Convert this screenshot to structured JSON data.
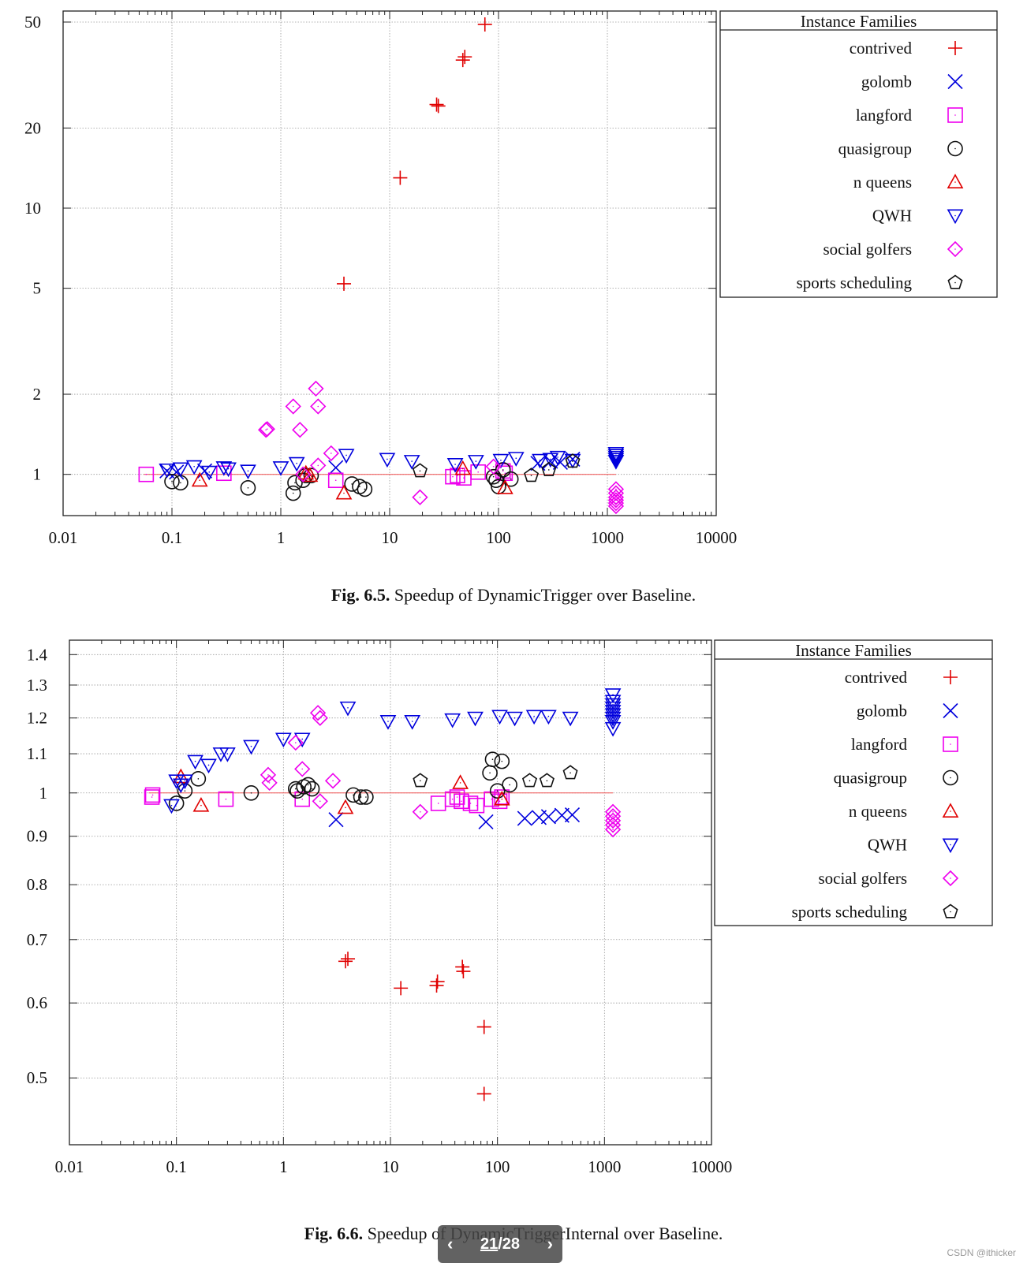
{
  "chart_data": [
    {
      "id": "fig65",
      "type": "scatter",
      "xscale": "log",
      "yscale": "log",
      "xlim": [
        0.01,
        10000
      ],
      "ylim": [
        0.7,
        55
      ],
      "xticks": [
        {
          "v": 0.01,
          "label": "0.01"
        },
        {
          "v": 0.1,
          "label": "0.1"
        },
        {
          "v": 1,
          "label": "1"
        },
        {
          "v": 10,
          "label": "10"
        },
        {
          "v": 100,
          "label": "100"
        },
        {
          "v": 1000,
          "label": "1000"
        },
        {
          "v": 10000,
          "label": "10000"
        }
      ],
      "yticks": [
        {
          "v": 1,
          "label": "1"
        },
        {
          "v": 2,
          "label": "2"
        },
        {
          "v": 5,
          "label": "5"
        },
        {
          "v": 10,
          "label": "10"
        },
        {
          "v": 20,
          "label": "20"
        },
        {
          "v": 50,
          "label": "50"
        }
      ],
      "refline": {
        "y": 1,
        "x_from": 0.055,
        "x_to": 1200,
        "color": "#f05050"
      },
      "legend_title": "Instance Families",
      "caption_bold": "Fig. 6.5.",
      "caption_text": "Speedup of DynamicTrigger over Baseline.",
      "series": [
        {
          "name": "contrived",
          "marker": "plus",
          "color": "#e00000",
          "points": [
            [
              3.8,
              5.2
            ],
            [
              12.5,
              13
            ],
            [
              27,
              24.5
            ],
            [
              28,
              24.2
            ],
            [
              47,
              36
            ],
            [
              49,
              37
            ],
            [
              75,
              49
            ]
          ]
        },
        {
          "name": "golomb",
          "marker": "x",
          "color": "#0000dd",
          "points": [
            [
              0.09,
              1.03
            ],
            [
              0.11,
              1.02
            ],
            [
              0.2,
              1.03
            ],
            [
              3.2,
              1.06
            ],
            [
              230,
              1.1
            ],
            [
              300,
              1.12
            ],
            [
              370,
              1.11
            ],
            [
              480,
              1.14
            ]
          ]
        },
        {
          "name": "langford",
          "marker": "square",
          "color": "#ee00ee",
          "points": [
            [
              0.058,
              1.0
            ],
            [
              0.3,
              1.01
            ],
            [
              3.2,
              0.95
            ],
            [
              38,
              0.98
            ],
            [
              42,
              0.99
            ],
            [
              48,
              0.97
            ],
            [
              65,
              1.02
            ],
            [
              110,
              1.03
            ],
            [
              115,
              1.01
            ]
          ]
        },
        {
          "name": "quasigroup",
          "marker": "circle",
          "color": "#111111",
          "points": [
            [
              0.1,
              0.94
            ],
            [
              0.12,
              0.93
            ],
            [
              0.5,
              0.89
            ],
            [
              1.3,
              0.85
            ],
            [
              1.35,
              0.93
            ],
            [
              1.6,
              0.95
            ],
            [
              1.7,
              0.99
            ],
            [
              1.9,
              0.99
            ],
            [
              4.5,
              0.92
            ],
            [
              5.3,
              0.9
            ],
            [
              5.9,
              0.88
            ],
            [
              90,
              0.98
            ],
            [
              95,
              0.95
            ],
            [
              100,
              0.9
            ],
            [
              110,
              1.04
            ],
            [
              130,
              0.96
            ]
          ]
        },
        {
          "name": "n queens",
          "marker": "triangle-up",
          "color": "#e00000",
          "points": [
            [
              0.18,
              0.95
            ],
            [
              1.7,
              1.01
            ],
            [
              1.85,
              0.99
            ],
            [
              3.8,
              0.85
            ],
            [
              47,
              1.05
            ],
            [
              115,
              0.89
            ]
          ]
        },
        {
          "name": "QWH",
          "marker": "triangle-down",
          "color": "#0000dd",
          "points": [
            [
              0.09,
              1.04
            ],
            [
              0.12,
              1.05
            ],
            [
              0.16,
              1.07
            ],
            [
              0.22,
              1.02
            ],
            [
              0.3,
              1.06
            ],
            [
              0.33,
              1.05
            ],
            [
              0.5,
              1.03
            ],
            [
              1.0,
              1.06
            ],
            [
              1.4,
              1.1
            ],
            [
              4,
              1.18
            ],
            [
              9.5,
              1.14
            ],
            [
              16,
              1.12
            ],
            [
              40,
              1.09
            ],
            [
              62,
              1.12
            ],
            [
              105,
              1.13
            ],
            [
              145,
              1.15
            ],
            [
              240,
              1.13
            ],
            [
              300,
              1.14
            ],
            [
              350,
              1.16
            ],
            [
              480,
              1.13
            ],
            [
              1200,
              1.12
            ],
            [
              1200,
              1.14
            ],
            [
              1200,
              1.16
            ],
            [
              1200,
              1.18
            ],
            [
              1200,
              1.2
            ]
          ]
        },
        {
          "name": "social golfers",
          "marker": "diamond",
          "color": "#ee00ee",
          "points": [
            [
              0.73,
              1.47
            ],
            [
              0.75,
              1.48
            ],
            [
              1.3,
              1.8
            ],
            [
              1.5,
              1.47
            ],
            [
              2.1,
              2.1
            ],
            [
              2.2,
              1.8
            ],
            [
              2.9,
              1.2
            ],
            [
              2.2,
              1.08
            ],
            [
              19,
              0.82
            ],
            [
              1.6,
              1.0
            ],
            [
              90,
              1.07
            ],
            [
              1200,
              0.88
            ],
            [
              1200,
              0.85
            ],
            [
              1200,
              0.82
            ],
            [
              1200,
              0.8
            ],
            [
              1200,
              0.78
            ],
            [
              1200,
              0.76
            ]
          ]
        },
        {
          "name": "sports scheduling",
          "marker": "pentagon",
          "color": "#111111",
          "points": [
            [
              19,
              1.03
            ],
            [
              200,
              0.99
            ],
            [
              290,
              1.04
            ],
            [
              480,
              1.12
            ]
          ]
        }
      ]
    },
    {
      "id": "fig66",
      "type": "scatter",
      "xscale": "log",
      "yscale": "log",
      "xlim": [
        0.01,
        10000
      ],
      "ylim": [
        0.425,
        1.45
      ],
      "xticks": [
        {
          "v": 0.01,
          "label": "0.01"
        },
        {
          "v": 0.1,
          "label": "0.1"
        },
        {
          "v": 1,
          "label": "1"
        },
        {
          "v": 10,
          "label": "10"
        },
        {
          "v": 100,
          "label": "100"
        },
        {
          "v": 1000,
          "label": "1000"
        },
        {
          "v": 10000,
          "label": "10000"
        }
      ],
      "yticks": [
        {
          "v": 0.5,
          "label": "0.5"
        },
        {
          "v": 0.6,
          "label": "0.6"
        },
        {
          "v": 0.7,
          "label": "0.7"
        },
        {
          "v": 0.8,
          "label": "0.8"
        },
        {
          "v": 0.9,
          "label": "0.9"
        },
        {
          "v": 1,
          "label": "1"
        },
        {
          "v": 1.1,
          "label": "1.1"
        },
        {
          "v": 1.2,
          "label": "1.2"
        },
        {
          "v": 1.3,
          "label": "1.3"
        },
        {
          "v": 1.4,
          "label": "1.4"
        }
      ],
      "refline": {
        "y": 1,
        "x_from": 0.055,
        "x_to": 1200,
        "color": "#f05050"
      },
      "legend_title": "Instance Families",
      "caption_bold": "Fig. 6.6.",
      "caption_text": "Speedup of DynamicTriggerInternal over Baseline.",
      "series": [
        {
          "name": "contrived",
          "marker": "plus",
          "color": "#e00000",
          "points": [
            [
              3.8,
              0.664
            ],
            [
              4.0,
              0.668
            ],
            [
              12.5,
              0.622
            ],
            [
              27,
              0.626
            ],
            [
              27.5,
              0.632
            ],
            [
              47,
              0.655
            ],
            [
              48,
              0.648
            ],
            [
              75,
              0.566
            ],
            [
              75,
              0.481
            ]
          ]
        },
        {
          "name": "golomb",
          "marker": "x",
          "color": "#0000dd",
          "points": [
            [
              3.1,
              0.937
            ],
            [
              78,
              0.932
            ],
            [
              180,
              0.94
            ],
            [
              245,
              0.942
            ],
            [
              300,
              0.944
            ],
            [
              400,
              0.947
            ],
            [
              500,
              0.948
            ]
          ]
        },
        {
          "name": "langford",
          "marker": "square",
          "color": "#ee00ee",
          "points": [
            [
              0.059,
              0.99
            ],
            [
              0.06,
              0.995
            ],
            [
              0.29,
              0.985
            ],
            [
              1.5,
              0.985
            ],
            [
              28,
              0.975
            ],
            [
              38,
              0.985
            ],
            [
              42,
              0.99
            ],
            [
              46,
              0.98
            ],
            [
              56,
              0.975
            ],
            [
              64,
              0.97
            ],
            [
              88,
              0.985
            ],
            [
              105,
              0.98
            ],
            [
              110,
              0.99
            ]
          ]
        },
        {
          "name": "quasigroup",
          "marker": "circle",
          "color": "#111111",
          "points": [
            [
              0.1,
              0.975
            ],
            [
              0.12,
              1.005
            ],
            [
              0.16,
              1.035
            ],
            [
              0.5,
              1.0
            ],
            [
              1.3,
              1.01
            ],
            [
              1.35,
              1.005
            ],
            [
              1.55,
              1.015
            ],
            [
              1.7,
              1.02
            ],
            [
              1.85,
              1.01
            ],
            [
              4.5,
              0.995
            ],
            [
              5.3,
              0.99
            ],
            [
              5.9,
              0.99
            ],
            [
              85,
              1.05
            ],
            [
              90,
              1.085
            ],
            [
              100,
              1.005
            ],
            [
              110,
              1.08
            ],
            [
              130,
              1.02
            ]
          ]
        },
        {
          "name": "n queens",
          "marker": "triangle-up",
          "color": "#e00000",
          "points": [
            [
              0.11,
              1.04
            ],
            [
              0.17,
              0.97
            ],
            [
              3.8,
              0.965
            ],
            [
              45,
              1.025
            ],
            [
              110,
              0.985
            ]
          ]
        },
        {
          "name": "QWH",
          "marker": "triangle-down",
          "color": "#0000dd",
          "points": [
            [
              0.09,
              0.97
            ],
            [
              0.1,
              1.03
            ],
            [
              0.11,
              1.02
            ],
            [
              0.12,
              1.03
            ],
            [
              0.15,
              1.08
            ],
            [
              0.2,
              1.07
            ],
            [
              0.26,
              1.1
            ],
            [
              0.3,
              1.1
            ],
            [
              0.5,
              1.12
            ],
            [
              1.0,
              1.14
            ],
            [
              1.5,
              1.14
            ],
            [
              4,
              1.23
            ],
            [
              9.5,
              1.19
            ],
            [
              16,
              1.19
            ],
            [
              38,
              1.195
            ],
            [
              62,
              1.2
            ],
            [
              105,
              1.205
            ],
            [
              145,
              1.2
            ],
            [
              220,
              1.205
            ],
            [
              300,
              1.205
            ],
            [
              480,
              1.2
            ],
            [
              1200,
              1.17
            ],
            [
              1200,
              1.19
            ],
            [
              1200,
              1.2
            ],
            [
              1200,
              1.21
            ],
            [
              1200,
              1.22
            ],
            [
              1200,
              1.23
            ],
            [
              1200,
              1.24
            ],
            [
              1200,
              1.25
            ],
            [
              1200,
              1.27
            ]
          ]
        },
        {
          "name": "social golfers",
          "marker": "diamond",
          "color": "#ee00ee",
          "points": [
            [
              0.72,
              1.045
            ],
            [
              0.74,
              1.025
            ],
            [
              1.3,
              1.13
            ],
            [
              1.5,
              1.06
            ],
            [
              2.1,
              1.215
            ],
            [
              2.2,
              1.2
            ],
            [
              2.9,
              1.03
            ],
            [
              2.2,
              0.98
            ],
            [
              19,
              0.955
            ],
            [
              1200,
              0.915
            ],
            [
              1200,
              0.925
            ],
            [
              1200,
              0.935
            ],
            [
              1200,
              0.945
            ],
            [
              1200,
              0.955
            ]
          ]
        },
        {
          "name": "sports scheduling",
          "marker": "pentagon",
          "color": "#111111",
          "points": [
            [
              19,
              1.03
            ],
            [
              200,
              1.03
            ],
            [
              290,
              1.03
            ],
            [
              480,
              1.05
            ]
          ]
        }
      ]
    }
  ],
  "pager": {
    "prev": "‹",
    "current": "21",
    "sep": "/",
    "total": "28",
    "next": "›"
  },
  "watermark": "CSDN @ithicker"
}
